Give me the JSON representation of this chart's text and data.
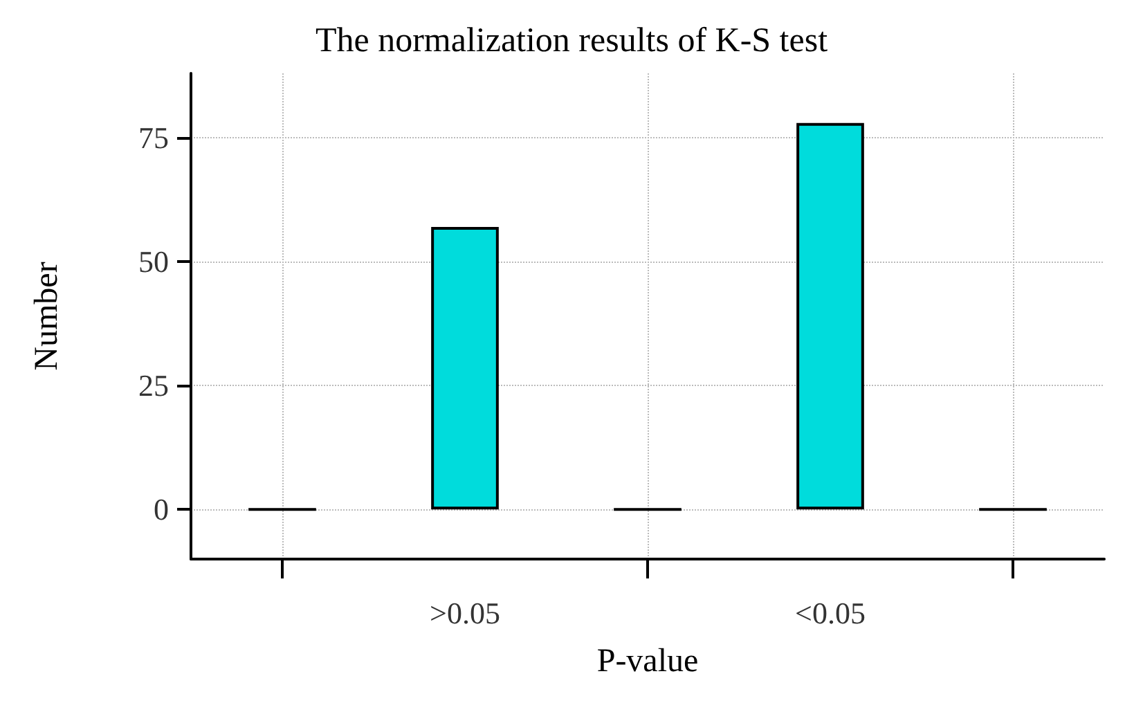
{
  "chart_data": {
    "type": "bar",
    "title": "The normalization results of K-S test",
    "xlabel": "P-value",
    "ylabel": "Number",
    "categories": [
      null,
      ">0.05",
      null,
      "<0.05",
      null
    ],
    "values": [
      0,
      57,
      0,
      78,
      0
    ],
    "colors": [
      "#000000",
      "#00dcdc",
      "#000000",
      "#00dcdc",
      "#000000"
    ],
    "ylim": [
      -10,
      88
    ],
    "yticks": [
      0,
      25,
      50,
      75
    ],
    "grid": true
  }
}
